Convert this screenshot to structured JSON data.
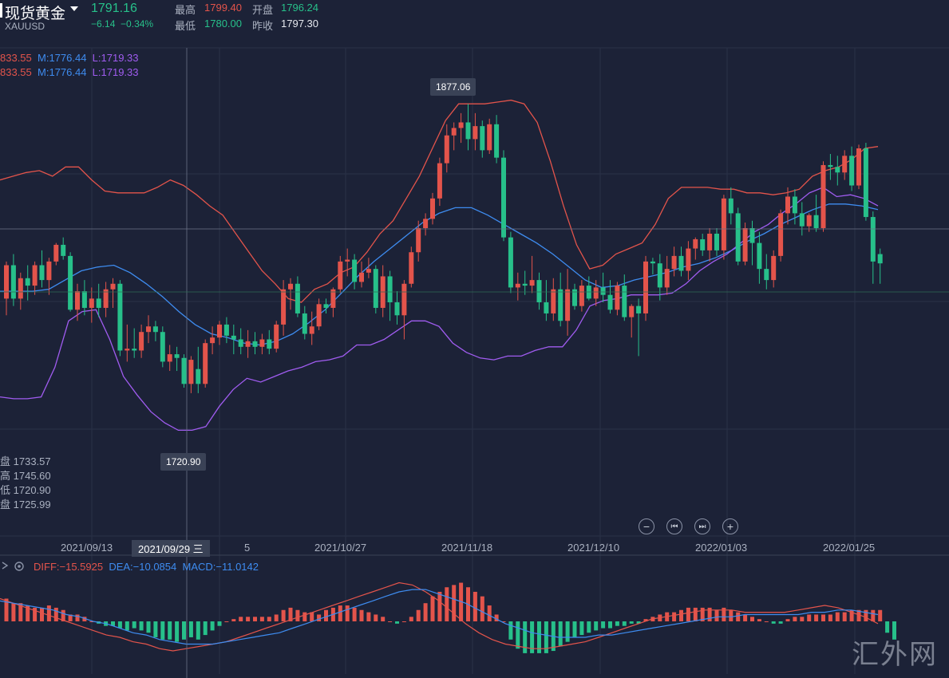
{
  "header": {
    "title": "现货黄金",
    "symbol": "XAUUSD",
    "price": "1791.16",
    "change": "−6.14",
    "change_pct": "−0.34%",
    "high_label": "最高",
    "high": "1799.40",
    "low_label": "最低",
    "low": "1780.00",
    "open_label": "开盘",
    "open": "1796.24",
    "prev_label": "昨收",
    "prev": "1797.30"
  },
  "boll_lines": [
    {
      "u": "833.55",
      "m": "M:1776.44",
      "l": "L:1719.33"
    },
    {
      "u": "833.55",
      "m": "M:1776.44",
      "l": "L:1719.33"
    }
  ],
  "ohlc_info": [
    {
      "label": "盘",
      "value": "1733.57"
    },
    {
      "label": "高",
      "value": "1745.60"
    },
    {
      "label": "低",
      "value": "1720.90"
    },
    {
      "label": "盘",
      "value": "1725.99"
    }
  ],
  "markers": {
    "max": "1877.06",
    "min": "1720.90"
  },
  "controls": {
    "zoom_out": "−",
    "prev": "⏮",
    "next": "⏭",
    "zoom_in": "+"
  },
  "x_axis": {
    "ticks": [
      "2021/09/13",
      "2021/10/27",
      "2021/11/18",
      "2021/12/10",
      "2022/01/03",
      "2022/01/25"
    ],
    "crosshair_label": "2021/09/29 三",
    "partial_tick": "5"
  },
  "macd_header": {
    "diff": "DIFF:−15.5925",
    "dea": "DEA:−10.0854",
    "macd": "MACD:−11.0142"
  },
  "watermark": "汇外网",
  "colors": {
    "up": "#e3544b",
    "down": "#27c08a",
    "mid": "#3e8cf0",
    "band": "#e3544b",
    "lower": "#a05cf0",
    "bg": "#1c2237"
  },
  "chart_data": {
    "type": "candlestick",
    "y_range": [
      1690,
      1890
    ],
    "candles": [
      {
        "o": 1772,
        "h": 1792,
        "l": 1763,
        "c": 1790
      },
      {
        "o": 1790,
        "h": 1796,
        "l": 1768,
        "c": 1772
      },
      {
        "o": 1772,
        "h": 1786,
        "l": 1766,
        "c": 1783
      },
      {
        "o": 1783,
        "h": 1790,
        "l": 1771,
        "c": 1779
      },
      {
        "o": 1779,
        "h": 1792,
        "l": 1774,
        "c": 1790
      },
      {
        "o": 1790,
        "h": 1798,
        "l": 1778,
        "c": 1782
      },
      {
        "o": 1782,
        "h": 1794,
        "l": 1774,
        "c": 1792
      },
      {
        "o": 1792,
        "h": 1802,
        "l": 1790,
        "c": 1801
      },
      {
        "o": 1801,
        "h": 1805,
        "l": 1793,
        "c": 1795
      },
      {
        "o": 1795,
        "h": 1797,
        "l": 1765,
        "c": 1766
      },
      {
        "o": 1766,
        "h": 1780,
        "l": 1760,
        "c": 1776
      },
      {
        "o": 1776,
        "h": 1782,
        "l": 1763,
        "c": 1767
      },
      {
        "o": 1767,
        "h": 1778,
        "l": 1759,
        "c": 1772
      },
      {
        "o": 1772,
        "h": 1780,
        "l": 1762,
        "c": 1767
      },
      {
        "o": 1767,
        "h": 1781,
        "l": 1762,
        "c": 1777
      },
      {
        "o": 1777,
        "h": 1783,
        "l": 1767,
        "c": 1780
      },
      {
        "o": 1780,
        "h": 1782,
        "l": 1741,
        "c": 1744
      },
      {
        "o": 1744,
        "h": 1758,
        "l": 1738,
        "c": 1745
      },
      {
        "o": 1745,
        "h": 1756,
        "l": 1740,
        "c": 1744
      },
      {
        "o": 1744,
        "h": 1758,
        "l": 1740,
        "c": 1754
      },
      {
        "o": 1754,
        "h": 1763,
        "l": 1748,
        "c": 1757
      },
      {
        "o": 1757,
        "h": 1760,
        "l": 1749,
        "c": 1754
      },
      {
        "o": 1754,
        "h": 1757,
        "l": 1735,
        "c": 1738
      },
      {
        "o": 1738,
        "h": 1747,
        "l": 1733,
        "c": 1742
      },
      {
        "o": 1742,
        "h": 1746,
        "l": 1733,
        "c": 1740
      },
      {
        "o": 1740,
        "h": 1742,
        "l": 1724,
        "c": 1726
      },
      {
        "o": 1726,
        "h": 1741,
        "l": 1721,
        "c": 1739
      },
      {
        "o": 1734,
        "h": 1746,
        "l": 1721,
        "c": 1726
      },
      {
        "o": 1726,
        "h": 1750,
        "l": 1724,
        "c": 1748
      },
      {
        "o": 1748,
        "h": 1757,
        "l": 1742,
        "c": 1751
      },
      {
        "o": 1751,
        "h": 1760,
        "l": 1747,
        "c": 1758
      },
      {
        "o": 1758,
        "h": 1762,
        "l": 1748,
        "c": 1752
      },
      {
        "o": 1752,
        "h": 1758,
        "l": 1742,
        "c": 1750
      },
      {
        "o": 1750,
        "h": 1756,
        "l": 1742,
        "c": 1746
      },
      {
        "o": 1746,
        "h": 1755,
        "l": 1740,
        "c": 1749
      },
      {
        "o": 1749,
        "h": 1754,
        "l": 1742,
        "c": 1746
      },
      {
        "o": 1746,
        "h": 1753,
        "l": 1742,
        "c": 1750
      },
      {
        "o": 1750,
        "h": 1755,
        "l": 1742,
        "c": 1745
      },
      {
        "o": 1745,
        "h": 1760,
        "l": 1743,
        "c": 1758
      },
      {
        "o": 1758,
        "h": 1782,
        "l": 1752,
        "c": 1777
      },
      {
        "o": 1777,
        "h": 1783,
        "l": 1766,
        "c": 1780
      },
      {
        "o": 1780,
        "h": 1784,
        "l": 1762,
        "c": 1764
      },
      {
        "o": 1764,
        "h": 1768,
        "l": 1750,
        "c": 1753
      },
      {
        "o": 1753,
        "h": 1765,
        "l": 1747,
        "c": 1757
      },
      {
        "o": 1757,
        "h": 1772,
        "l": 1755,
        "c": 1769
      },
      {
        "o": 1769,
        "h": 1772,
        "l": 1764,
        "c": 1767
      },
      {
        "o": 1767,
        "h": 1778,
        "l": 1762,
        "c": 1777
      },
      {
        "o": 1777,
        "h": 1795,
        "l": 1775,
        "c": 1792
      },
      {
        "o": 1792,
        "h": 1799,
        "l": 1784,
        "c": 1793
      },
      {
        "o": 1793,
        "h": 1796,
        "l": 1777,
        "c": 1781
      },
      {
        "o": 1781,
        "h": 1792,
        "l": 1778,
        "c": 1786
      },
      {
        "o": 1786,
        "h": 1794,
        "l": 1783,
        "c": 1788
      },
      {
        "o": 1788,
        "h": 1790,
        "l": 1764,
        "c": 1767
      },
      {
        "o": 1767,
        "h": 1790,
        "l": 1762,
        "c": 1784
      },
      {
        "o": 1784,
        "h": 1787,
        "l": 1760,
        "c": 1770
      },
      {
        "o": 1770,
        "h": 1776,
        "l": 1758,
        "c": 1763
      },
      {
        "o": 1763,
        "h": 1782,
        "l": 1750,
        "c": 1780
      },
      {
        "o": 1780,
        "h": 1800,
        "l": 1778,
        "c": 1797
      },
      {
        "o": 1797,
        "h": 1814,
        "l": 1792,
        "c": 1810
      },
      {
        "o": 1810,
        "h": 1818,
        "l": 1806,
        "c": 1815
      },
      {
        "o": 1815,
        "h": 1829,
        "l": 1812,
        "c": 1826
      },
      {
        "o": 1826,
        "h": 1848,
        "l": 1822,
        "c": 1845
      },
      {
        "o": 1845,
        "h": 1866,
        "l": 1840,
        "c": 1860
      },
      {
        "o": 1860,
        "h": 1867,
        "l": 1852,
        "c": 1864
      },
      {
        "o": 1864,
        "h": 1872,
        "l": 1856,
        "c": 1867
      },
      {
        "o": 1867,
        "h": 1877,
        "l": 1852,
        "c": 1858
      },
      {
        "o": 1858,
        "h": 1872,
        "l": 1852,
        "c": 1865
      },
      {
        "o": 1865,
        "h": 1868,
        "l": 1848,
        "c": 1852
      },
      {
        "o": 1852,
        "h": 1869,
        "l": 1850,
        "c": 1866
      },
      {
        "o": 1866,
        "h": 1871,
        "l": 1845,
        "c": 1848
      },
      {
        "o": 1848,
        "h": 1852,
        "l": 1803,
        "c": 1805
      },
      {
        "o": 1805,
        "h": 1808,
        "l": 1775,
        "c": 1778
      },
      {
        "o": 1778,
        "h": 1786,
        "l": 1771,
        "c": 1780
      },
      {
        "o": 1780,
        "h": 1787,
        "l": 1774,
        "c": 1779
      },
      {
        "o": 1779,
        "h": 1795,
        "l": 1775,
        "c": 1782
      },
      {
        "o": 1782,
        "h": 1786,
        "l": 1766,
        "c": 1770
      },
      {
        "o": 1770,
        "h": 1782,
        "l": 1760,
        "c": 1764
      },
      {
        "o": 1764,
        "h": 1783,
        "l": 1760,
        "c": 1777
      },
      {
        "o": 1777,
        "h": 1786,
        "l": 1757,
        "c": 1760
      },
      {
        "o": 1760,
        "h": 1788,
        "l": 1752,
        "c": 1777
      },
      {
        "o": 1777,
        "h": 1780,
        "l": 1766,
        "c": 1768
      },
      {
        "o": 1768,
        "h": 1782,
        "l": 1765,
        "c": 1779
      },
      {
        "o": 1779,
        "h": 1784,
        "l": 1771,
        "c": 1772
      },
      {
        "o": 1772,
        "h": 1782,
        "l": 1768,
        "c": 1778
      },
      {
        "o": 1778,
        "h": 1786,
        "l": 1770,
        "c": 1774
      },
      {
        "o": 1774,
        "h": 1782,
        "l": 1764,
        "c": 1766
      },
      {
        "o": 1766,
        "h": 1781,
        "l": 1763,
        "c": 1779
      },
      {
        "o": 1779,
        "h": 1785,
        "l": 1760,
        "c": 1762
      },
      {
        "o": 1762,
        "h": 1769,
        "l": 1751,
        "c": 1768
      },
      {
        "o": 1768,
        "h": 1772,
        "l": 1741,
        "c": 1764
      },
      {
        "o": 1764,
        "h": 1795,
        "l": 1760,
        "c": 1792
      },
      {
        "o": 1792,
        "h": 1794,
        "l": 1785,
        "c": 1791
      },
      {
        "o": 1791,
        "h": 1796,
        "l": 1771,
        "c": 1778
      },
      {
        "o": 1778,
        "h": 1795,
        "l": 1774,
        "c": 1788
      },
      {
        "o": 1788,
        "h": 1800,
        "l": 1784,
        "c": 1795
      },
      {
        "o": 1795,
        "h": 1800,
        "l": 1784,
        "c": 1787
      },
      {
        "o": 1787,
        "h": 1803,
        "l": 1782,
        "c": 1799
      },
      {
        "o": 1799,
        "h": 1805,
        "l": 1793,
        "c": 1804
      },
      {
        "o": 1804,
        "h": 1807,
        "l": 1795,
        "c": 1798
      },
      {
        "o": 1798,
        "h": 1810,
        "l": 1792,
        "c": 1807
      },
      {
        "o": 1807,
        "h": 1810,
        "l": 1795,
        "c": 1798
      },
      {
        "o": 1798,
        "h": 1828,
        "l": 1793,
        "c": 1826
      },
      {
        "o": 1826,
        "h": 1832,
        "l": 1812,
        "c": 1818
      },
      {
        "o": 1818,
        "h": 1821,
        "l": 1790,
        "c": 1792
      },
      {
        "o": 1792,
        "h": 1813,
        "l": 1790,
        "c": 1810
      },
      {
        "o": 1810,
        "h": 1814,
        "l": 1790,
        "c": 1802
      },
      {
        "o": 1802,
        "h": 1808,
        "l": 1780,
        "c": 1788
      },
      {
        "o": 1788,
        "h": 1796,
        "l": 1777,
        "c": 1782
      },
      {
        "o": 1782,
        "h": 1798,
        "l": 1778,
        "c": 1795
      },
      {
        "o": 1795,
        "h": 1820,
        "l": 1792,
        "c": 1818
      },
      {
        "o": 1818,
        "h": 1832,
        "l": 1812,
        "c": 1827
      },
      {
        "o": 1827,
        "h": 1831,
        "l": 1812,
        "c": 1818
      },
      {
        "o": 1818,
        "h": 1824,
        "l": 1806,
        "c": 1811
      },
      {
        "o": 1811,
        "h": 1818,
        "l": 1808,
        "c": 1817
      },
      {
        "o": 1817,
        "h": 1828,
        "l": 1808,
        "c": 1810
      },
      {
        "o": 1810,
        "h": 1846,
        "l": 1808,
        "c": 1844
      },
      {
        "o": 1844,
        "h": 1850,
        "l": 1836,
        "c": 1843
      },
      {
        "o": 1843,
        "h": 1849,
        "l": 1833,
        "c": 1840
      },
      {
        "o": 1840,
        "h": 1852,
        "l": 1836,
        "c": 1849
      },
      {
        "o": 1849,
        "h": 1854,
        "l": 1830,
        "c": 1833
      },
      {
        "o": 1833,
        "h": 1855,
        "l": 1831,
        "c": 1853
      },
      {
        "o": 1853,
        "h": 1856,
        "l": 1814,
        "c": 1816
      },
      {
        "o": 1816,
        "h": 1819,
        "l": 1780,
        "c": 1792
      },
      {
        "o": 1796,
        "h": 1799,
        "l": 1780,
        "c": 1791
      }
    ],
    "boll_upper": [
      1836,
      1838,
      1840,
      1841,
      1838,
      1843,
      1843,
      1836,
      1830,
      1829,
      1829,
      1829,
      1832,
      1836,
      1833,
      1828,
      1822,
      1817,
      1807,
      1797,
      1787,
      1780,
      1772,
      1770,
      1777,
      1780,
      1786,
      1789,
      1797,
      1807,
      1814,
      1826,
      1838,
      1853,
      1868,
      1877,
      1877,
      1877,
      1878,
      1879,
      1877,
      1867,
      1846,
      1822,
      1801,
      1788,
      1790,
      1796,
      1799,
      1802,
      1812,
      1826,
      1832,
      1832,
      1832,
      1831,
      1831,
      1829,
      1829,
      1828,
      1829,
      1831,
      1838,
      1841,
      1843,
      1847,
      1853,
      1854
    ],
    "boll_mid": [
      1776,
      1776,
      1776,
      1777,
      1782,
      1787,
      1789,
      1790,
      1786,
      1780,
      1773,
      1765,
      1758,
      1753,
      1751,
      1748,
      1747,
      1749,
      1753,
      1759,
      1766,
      1775,
      1784,
      1792,
      1799,
      1806,
      1813,
      1818,
      1821,
      1821,
      1817,
      1812,
      1807,
      1802,
      1796,
      1789,
      1782,
      1778,
      1779,
      1782,
      1784,
      1786,
      1789,
      1791,
      1794,
      1798,
      1803,
      1807,
      1812,
      1816,
      1820,
      1823,
      1823,
      1822,
      1820
    ],
    "boll_lower": [
      1719,
      1718,
      1718,
      1719,
      1735,
      1760,
      1765,
      1766,
      1750,
      1730,
      1720,
      1711,
      1705,
      1701,
      1701,
      1703,
      1714,
      1723,
      1729,
      1727,
      1730,
      1733,
      1735,
      1738,
      1739,
      1741,
      1747,
      1747,
      1750,
      1755,
      1760,
      1760,
      1757,
      1748,
      1743,
      1740,
      1739,
      1741,
      1741,
      1744,
      1746,
      1746,
      1755,
      1768,
      1771,
      1772,
      1774,
      1774,
      1774,
      1775,
      1780,
      1787,
      1792,
      1796,
      1802,
      1808,
      1812,
      1818,
      1823,
      1829,
      1832,
      1827,
      1828,
      1826,
      1822
    ],
    "macd_hist": [
      10,
      8,
      8,
      7,
      6,
      6,
      7,
      6,
      5,
      3,
      3,
      2,
      0,
      -1,
      -2,
      -2,
      -3,
      -4,
      -3,
      -4,
      -5,
      -7,
      -8,
      -8,
      -9,
      -8,
      -7,
      -8,
      -6,
      -4,
      -2,
      0,
      1,
      2,
      2,
      2,
      2,
      2,
      3,
      5,
      6,
      5,
      4,
      4,
      3,
      5,
      6,
      7,
      7,
      6,
      5,
      4,
      3,
      2,
      0,
      -1,
      0,
      2,
      5,
      8,
      11,
      13,
      15,
      16,
      17,
      15,
      13,
      11,
      7,
      3,
      0,
      -8,
      -12,
      -14,
      -14,
      -14,
      -14,
      -13,
      -11,
      -9,
      -7,
      -6,
      -5,
      -4,
      -3,
      -3,
      -2,
      -2,
      -1,
      -1,
      1,
      2,
      3,
      4,
      4,
      5,
      6,
      6,
      6,
      6,
      5,
      6,
      5,
      4,
      3,
      2,
      1,
      0,
      -1,
      -1,
      1,
      2,
      2,
      3,
      3,
      3,
      3,
      4,
      4,
      5,
      5,
      5,
      5,
      5,
      -5,
      -8
    ],
    "macd_diff": [
      10,
      8,
      6,
      4,
      2,
      0,
      -2,
      -4,
      -6,
      -7,
      -9,
      -10,
      -12,
      -13,
      -12,
      -11,
      -10,
      -9,
      -7,
      -5,
      -3,
      -1,
      1,
      3,
      5,
      7,
      9,
      11,
      13,
      15,
      17,
      16,
      13,
      9,
      4,
      -1,
      -5,
      -8,
      -10,
      -11,
      -12,
      -12,
      -11,
      -10,
      -9,
      -7,
      -5,
      -3,
      -1,
      1,
      2,
      3,
      4,
      5,
      5,
      5,
      4,
      4,
      4,
      4,
      5,
      6,
      7,
      6,
      4,
      2,
      -1
    ],
    "macd_dea": [
      9,
      8,
      7,
      6,
      5,
      3,
      2,
      0,
      -1,
      -3,
      -5,
      -6,
      -8,
      -9,
      -10,
      -10,
      -10,
      -9,
      -8,
      -7,
      -6,
      -5,
      -3,
      -1,
      1,
      3,
      5,
      7,
      9,
      11,
      13,
      14,
      14,
      12,
      10,
      8,
      5,
      2,
      -1,
      -3,
      -5,
      -6,
      -7,
      -7,
      -7,
      -6,
      -6,
      -5,
      -4,
      -3,
      -2,
      -1,
      0,
      1,
      2,
      2,
      3,
      3,
      3,
      3,
      3,
      4,
      4,
      5,
      5,
      4,
      3
    ],
    "macd_range": [
      -20,
      20
    ]
  }
}
